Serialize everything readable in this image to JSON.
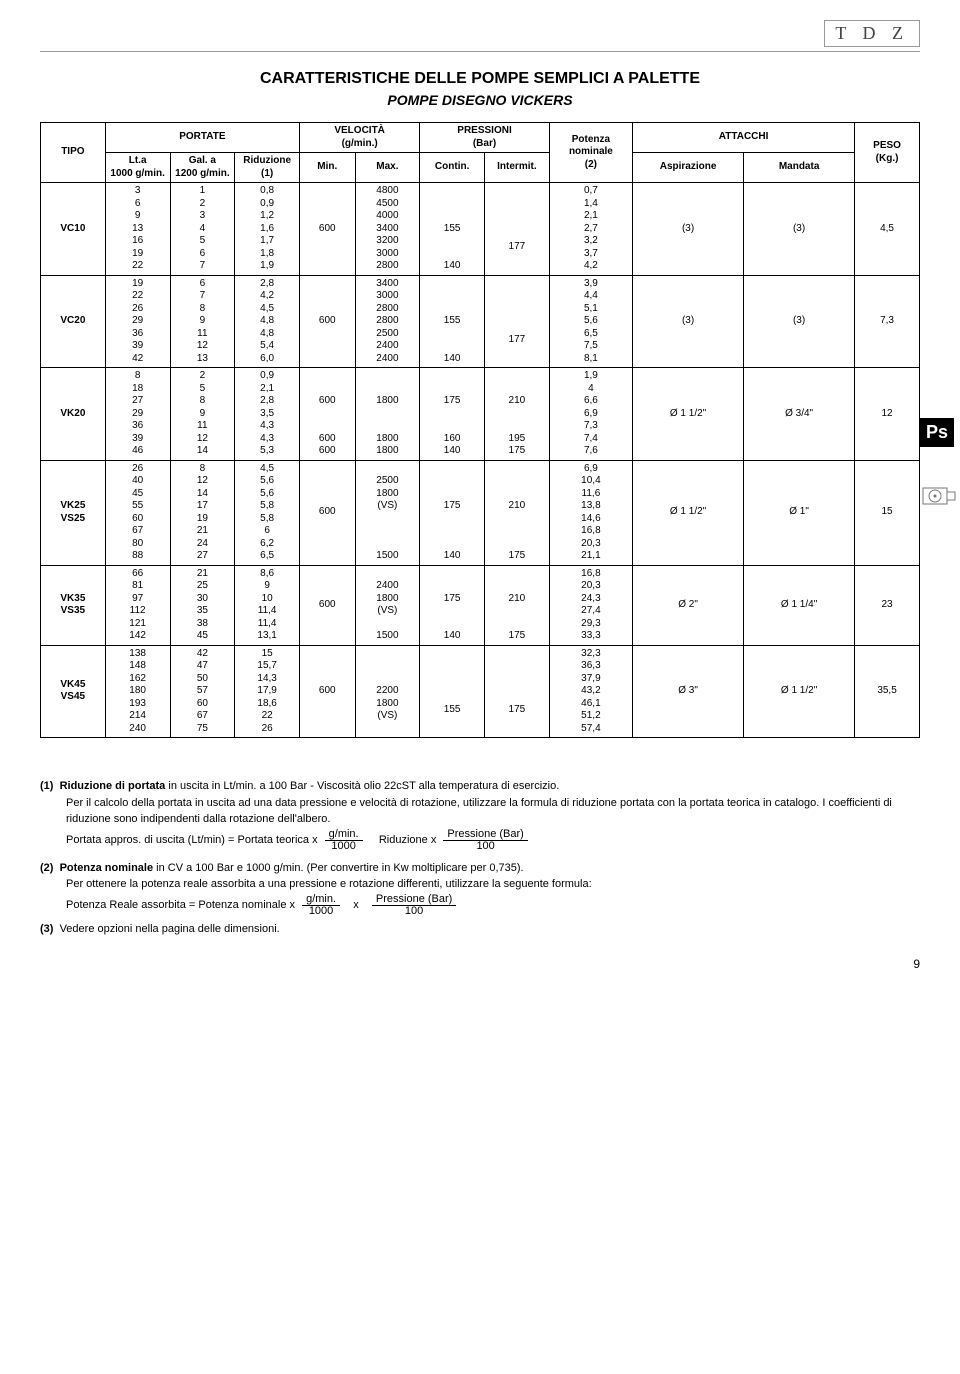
{
  "logo_text": "T D Z",
  "title": "CARATTERISTICHE DELLE POMPE SEMPLICI A PALETTE",
  "subtitle": "POMPE DISEGNO VICKERS",
  "page_number": "9",
  "ps_badge": "Ps",
  "header": {
    "tipo": "TIPO",
    "portate": "PORTATE",
    "lta": "Lt.a\n1000 g/min.",
    "gala": "Gal. a\n1200 g/min.",
    "riduz": "Riduzione\n(1)",
    "vel": "VELOCITÀ\n(g/min.)",
    "min": "Min.",
    "max": "Max.",
    "press": "PRESSIONI\n(Bar)",
    "contin": "Contin.",
    "intermit": "Intermit.",
    "pot": "Potenza\nnominale\n(2)",
    "att": "ATTACCHI",
    "asp": "Aspirazione",
    "mand": "Mandata",
    "peso": "PESO\n(Kg.)"
  },
  "rows": [
    {
      "tipo": "VC10",
      "lta": "3\n6\n9\n13\n16\n19\n22",
      "gala": "1\n2\n3\n4\n5\n6\n7",
      "riduz": "0,8\n0,9\n1,2\n1,6\n1,7\n1,8\n1,9",
      "min": "600",
      "max": "4800\n4500\n4000\n3400\n3200\n3000\n2800",
      "contin": "\n\n\n155\n\n\n140",
      "intermit": "\n\n\n177",
      "pot": "0,7\n1,4\n2,1\n2,7\n3,2\n3,7\n4,2",
      "asp": "(3)",
      "mand": "(3)",
      "peso": "4,5"
    },
    {
      "tipo": "VC20",
      "lta": "19\n22\n26\n29\n36\n39\n42",
      "gala": "6\n7\n8\n9\n11\n12\n13",
      "riduz": "2,8\n4,2\n4,5\n4,8\n4,8\n5,4\n6,0",
      "min": "600",
      "max": "3400\n3000\n2800\n2800\n2500\n2400\n2400",
      "contin": "\n\n\n155\n\n\n140",
      "intermit": "\n\n\n177",
      "pot": "3,9\n4,4\n5,1\n5,6\n6,5\n7,5\n8,1",
      "asp": "(3)",
      "mand": "(3)",
      "peso": "7,3"
    },
    {
      "tipo": "VK20",
      "lta": "8\n18\n27\n29\n36\n39\n46",
      "gala": "2\n5\n8\n9\n11\n12\n14",
      "riduz": "0,9\n2,1\n2,8\n3,5\n4,3\n4,3\n5,3",
      "min": "\n\n600\n\n\n600\n600",
      "max": "\n\n1800\n\n\n1800\n1800",
      "contin": "\n\n175\n\n\n160\n140",
      "intermit": "\n\n210\n\n\n195\n175",
      "pot": "1,9\n4\n6,6\n6,9\n7,3\n7,4\n7,6",
      "asp": "Ø 1 1/2\"",
      "mand": "Ø 3/4\"",
      "peso": "12"
    },
    {
      "tipo": "VK25\nVS25",
      "lta": "26\n40\n45\n55\n60\n67\n80\n88",
      "gala": "8\n12\n14\n17\n19\n21\n24\n27",
      "riduz": "4,5\n5,6\n5,6\n5,8\n5,8\n6\n6,2\n6,5",
      "min": "600",
      "max": "\n2500\n1800\n(VS)\n\n\n\n1500",
      "contin": "\n\n\n175\n\n\n\n140",
      "intermit": "\n\n\n210\n\n\n\n175",
      "pot": "6,9\n10,4\n11,6\n13,8\n14,6\n16,8\n20,3\n21,1",
      "asp": "Ø 1 1/2\"",
      "mand": "Ø 1\"",
      "peso": "15"
    },
    {
      "tipo": "VK35\nVS35",
      "lta": "66\n81\n97\n112\n121\n142",
      "gala": "21\n25\n30\n35\n38\n45",
      "riduz": "8,6\n9\n10\n11,4\n11,4\n13,1",
      "min": "600",
      "max": "\n2400\n1800\n(VS)\n\n1500",
      "contin": "\n\n175\n\n\n140",
      "intermit": "\n\n210\n\n\n175",
      "pot": "16,8\n20,3\n24,3\n27,4\n29,3\n33,3",
      "asp": "Ø 2\"",
      "mand": "Ø 1 1/4\"",
      "peso": "23"
    },
    {
      "tipo": "VK45\nVS45",
      "lta": "138\n148\n162\n180\n193\n214\n240",
      "gala": "42\n47\n50\n57\n60\n67\n75",
      "riduz": "15\n15,7\n14,3\n17,9\n18,6\n22\n26",
      "min": "600",
      "max": "\n\n2200\n1800\n(VS)",
      "contin": "\n\n\n155",
      "intermit": "\n\n\n175",
      "pot": "32,3\n36,3\n37,9\n43,2\n46,1\n51,2\n57,4",
      "asp": "Ø 3\"",
      "mand": "Ø 1 1/2\"",
      "peso": "35,5"
    }
  ],
  "notes": {
    "n1_label": "(1)",
    "n1_bold": "Riduzione di portata",
    "n1_text": " in uscita in Lt/min. a 100 Bar - Viscosità olio 22cST alla temperatura di esercizio.",
    "n1_text2": "Per il calcolo della portata in uscita ad una data pressione e velocità di rotazione, utilizzare la formula di riduzione portata con la portata teorica in catalogo. I coefficienti di riduzione sono indipendenti dalla rotazione dell'albero.",
    "n1_formula_prefix": "Portata appros. di uscita (Lt/min) = Portata teorica  x",
    "n1_f1_top": "g/min.",
    "n1_f1_bot": "1000",
    "n1_mid": "Riduzione x",
    "n1_f2_top": "Pressione (Bar)",
    "n1_f2_bot": "100",
    "n2_label": "(2)",
    "n2_bold": "Potenza nominale",
    "n2_text": " in CV a 100 Bar e 1000 g/min. (Per convertire in Kw moltiplicare per 0,735).",
    "n2_text2": "Per ottenere la potenza reale assorbita a una pressione e rotazione differenti, utilizzare la seguente formula:",
    "n2_formula_prefix": "Potenza Reale assorbita = Potenza nominale  x",
    "n2_f1_top": "g/min.",
    "n2_f1_bot": "1000",
    "n2_x": "x",
    "n2_f2_top": "Pressione (Bar)",
    "n2_f2_bot": "100",
    "n3_label": "(3)",
    "n3_text": "Vedere opzioni nella pagina delle dimensioni."
  }
}
